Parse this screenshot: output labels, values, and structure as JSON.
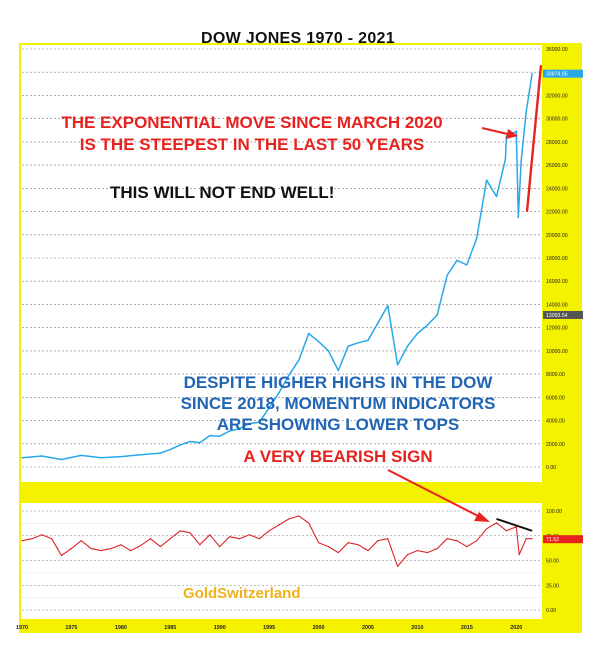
{
  "chart_data": {
    "title": "DOW JONES   1970 - 2021",
    "type": "line",
    "price_panel": {
      "series": [
        {
          "x": [
            1970,
            1972,
            1974,
            1976,
            1978,
            1980,
            1982,
            1984,
            1985,
            1986,
            1987,
            1988,
            1989,
            1990,
            1991,
            1992,
            1993,
            1994,
            1995,
            1996,
            1997,
            1998,
            1999,
            2000,
            2001,
            2002,
            2003,
            2004,
            2005,
            2006,
            2007,
            2008,
            2009,
            2010,
            2011,
            2012,
            2013,
            2014,
            2015,
            2016,
            2017,
            2018,
            2018.9,
            2019,
            2020,
            2020.2,
            2020.5,
            2021,
            2021.6
          ],
          "values": [
            800,
            950,
            650,
            1000,
            800,
            900,
            1050,
            1200,
            1500,
            1900,
            2200,
            2100,
            2700,
            2650,
            3100,
            3300,
            3750,
            3850,
            5100,
            6400,
            7900,
            9200,
            11500,
            10800,
            10000,
            8300,
            10400,
            10700,
            10900,
            12400,
            13900,
            8800,
            10400,
            11500,
            12200,
            13100,
            16500,
            17800,
            17400,
            19700,
            24700,
            23300,
            26500,
            28500,
            28900,
            21500,
            26400,
            30600,
            33875
          ]
        }
      ],
      "y_ticks": [
        "0.00",
        "2000.00",
        "4000.00",
        "6000.00",
        "8000.00",
        "10000.00",
        "12000.00",
        "14000.00",
        "16000.00",
        "18000.00",
        "20000.00",
        "22000.00",
        "24000.00",
        "26000.00",
        "28000.00",
        "30000.00",
        "32000.00",
        "34000.00",
        "36000.00"
      ],
      "last_value_label": "33874.85",
      "marker_label": "13093.54",
      "ylim": [
        0,
        36000
      ],
      "grid": true
    },
    "momentum_panel": {
      "series": [
        {
          "x": [
            1970,
            1971,
            1972,
            1973,
            1974,
            1975,
            1976,
            1977,
            1978,
            1979,
            1980,
            1981,
            1982,
            1983,
            1984,
            1985,
            1986,
            1987,
            1988,
            1989,
            1990,
            1991,
            1992,
            1993,
            1994,
            1995,
            1996,
            1997,
            1998,
            1999,
            2000,
            2001,
            2002,
            2003,
            2004,
            2005,
            2006,
            2007,
            2008,
            2009,
            2010,
            2011,
            2012,
            2013,
            2014,
            2015,
            2016,
            2017,
            2018,
            2019,
            2020,
            2020.3,
            2021,
            2021.6
          ],
          "values": [
            70,
            72,
            76,
            72,
            55,
            62,
            70,
            62,
            60,
            62,
            66,
            60,
            65,
            72,
            64,
            72,
            80,
            78,
            66,
            76,
            64,
            74,
            72,
            76,
            72,
            80,
            86,
            92,
            95,
            88,
            68,
            64,
            58,
            68,
            66,
            60,
            70,
            72,
            44,
            56,
            60,
            58,
            62,
            72,
            70,
            64,
            70,
            82,
            88,
            80,
            84,
            56,
            72,
            72
          ]
        }
      ],
      "y_ticks": [
        "0.00",
        "25.00",
        "50.00",
        "75.00",
        "100.00"
      ],
      "last_value_label": "71.52",
      "ylim": [
        0,
        110
      ],
      "trendline_from": [
        2018,
        92
      ],
      "trendline_to": [
        2021.6,
        80
      ]
    },
    "x_ticks": [
      "1970",
      "1975",
      "1980",
      "1985",
      "1990",
      "1995",
      "2000",
      "2005",
      "2010",
      "2015",
      "2020"
    ],
    "annotations": {
      "steep_line1": "THE EXPONENTIAL MOVE SINCE MARCH 2020",
      "steep_line2": "IS THE STEEPEST IN THE LAST 50 YEARS",
      "warning": "THIS WILL NOT END WELL!",
      "divergence_line1": "DESPITE HIGHER HIGHS IN THE DOW",
      "divergence_line2": "SINCE 2018, MOMENTUM INDICATORS",
      "divergence_line3": "ARE SHOWING LOWER TOPS",
      "bearish": "A VERY BEARISH SIGN",
      "brand": "GoldSwitzerland"
    },
    "colors": {
      "price_line": "#28a8e8",
      "momentum_line": "#d9262b",
      "axis_bg": "#f5f200",
      "red_annotation": "#e8221e",
      "blue_annotation": "#2066b5",
      "brand": "#f0b21a"
    }
  }
}
